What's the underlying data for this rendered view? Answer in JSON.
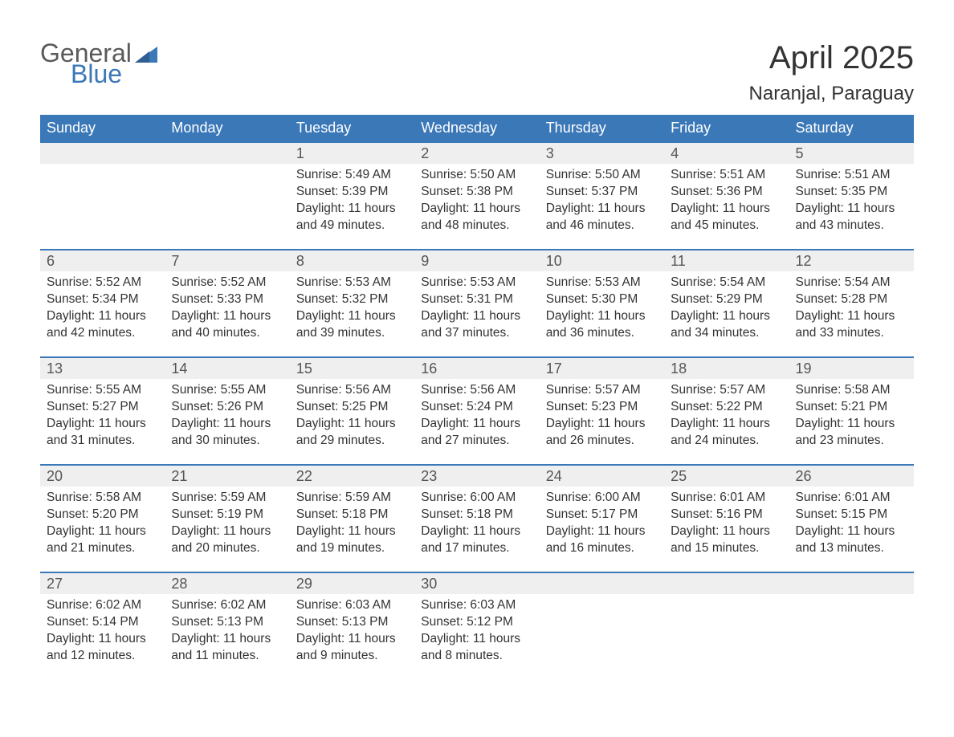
{
  "logo": {
    "text_general": "General",
    "text_blue": "Blue",
    "color_gray": "#5a5a5a",
    "color_blue": "#3b78b8"
  },
  "title": {
    "month": "April 2025",
    "location": "Naranjal, Paraguay"
  },
  "colors": {
    "header_bg": "#3b78b8",
    "header_text": "#ffffff",
    "daynum_bg": "#efefef",
    "week_border": "#3b78b8",
    "body_text": "#333333",
    "page_bg": "#ffffff"
  },
  "layout": {
    "columns": 7,
    "rows": 5,
    "col_width_pct": 14.28
  },
  "calendar": {
    "day_headers": [
      "Sunday",
      "Monday",
      "Tuesday",
      "Wednesday",
      "Thursday",
      "Friday",
      "Saturday"
    ],
    "weeks": [
      [
        null,
        null,
        {
          "n": "1",
          "sunrise": "5:49 AM",
          "sunset": "5:39 PM",
          "daylight": "11 hours and 49 minutes."
        },
        {
          "n": "2",
          "sunrise": "5:50 AM",
          "sunset": "5:38 PM",
          "daylight": "11 hours and 48 minutes."
        },
        {
          "n": "3",
          "sunrise": "5:50 AM",
          "sunset": "5:37 PM",
          "daylight": "11 hours and 46 minutes."
        },
        {
          "n": "4",
          "sunrise": "5:51 AM",
          "sunset": "5:36 PM",
          "daylight": "11 hours and 45 minutes."
        },
        {
          "n": "5",
          "sunrise": "5:51 AM",
          "sunset": "5:35 PM",
          "daylight": "11 hours and 43 minutes."
        }
      ],
      [
        {
          "n": "6",
          "sunrise": "5:52 AM",
          "sunset": "5:34 PM",
          "daylight": "11 hours and 42 minutes."
        },
        {
          "n": "7",
          "sunrise": "5:52 AM",
          "sunset": "5:33 PM",
          "daylight": "11 hours and 40 minutes."
        },
        {
          "n": "8",
          "sunrise": "5:53 AM",
          "sunset": "5:32 PM",
          "daylight": "11 hours and 39 minutes."
        },
        {
          "n": "9",
          "sunrise": "5:53 AM",
          "sunset": "5:31 PM",
          "daylight": "11 hours and 37 minutes."
        },
        {
          "n": "10",
          "sunrise": "5:53 AM",
          "sunset": "5:30 PM",
          "daylight": "11 hours and 36 minutes."
        },
        {
          "n": "11",
          "sunrise": "5:54 AM",
          "sunset": "5:29 PM",
          "daylight": "11 hours and 34 minutes."
        },
        {
          "n": "12",
          "sunrise": "5:54 AM",
          "sunset": "5:28 PM",
          "daylight": "11 hours and 33 minutes."
        }
      ],
      [
        {
          "n": "13",
          "sunrise": "5:55 AM",
          "sunset": "5:27 PM",
          "daylight": "11 hours and 31 minutes."
        },
        {
          "n": "14",
          "sunrise": "5:55 AM",
          "sunset": "5:26 PM",
          "daylight": "11 hours and 30 minutes."
        },
        {
          "n": "15",
          "sunrise": "5:56 AM",
          "sunset": "5:25 PM",
          "daylight": "11 hours and 29 minutes."
        },
        {
          "n": "16",
          "sunrise": "5:56 AM",
          "sunset": "5:24 PM",
          "daylight": "11 hours and 27 minutes."
        },
        {
          "n": "17",
          "sunrise": "5:57 AM",
          "sunset": "5:23 PM",
          "daylight": "11 hours and 26 minutes."
        },
        {
          "n": "18",
          "sunrise": "5:57 AM",
          "sunset": "5:22 PM",
          "daylight": "11 hours and 24 minutes."
        },
        {
          "n": "19",
          "sunrise": "5:58 AM",
          "sunset": "5:21 PM",
          "daylight": "11 hours and 23 minutes."
        }
      ],
      [
        {
          "n": "20",
          "sunrise": "5:58 AM",
          "sunset": "5:20 PM",
          "daylight": "11 hours and 21 minutes."
        },
        {
          "n": "21",
          "sunrise": "5:59 AM",
          "sunset": "5:19 PM",
          "daylight": "11 hours and 20 minutes."
        },
        {
          "n": "22",
          "sunrise": "5:59 AM",
          "sunset": "5:18 PM",
          "daylight": "11 hours and 19 minutes."
        },
        {
          "n": "23",
          "sunrise": "6:00 AM",
          "sunset": "5:18 PM",
          "daylight": "11 hours and 17 minutes."
        },
        {
          "n": "24",
          "sunrise": "6:00 AM",
          "sunset": "5:17 PM",
          "daylight": "11 hours and 16 minutes."
        },
        {
          "n": "25",
          "sunrise": "6:01 AM",
          "sunset": "5:16 PM",
          "daylight": "11 hours and 15 minutes."
        },
        {
          "n": "26",
          "sunrise": "6:01 AM",
          "sunset": "5:15 PM",
          "daylight": "11 hours and 13 minutes."
        }
      ],
      [
        {
          "n": "27",
          "sunrise": "6:02 AM",
          "sunset": "5:14 PM",
          "daylight": "11 hours and 12 minutes."
        },
        {
          "n": "28",
          "sunrise": "6:02 AM",
          "sunset": "5:13 PM",
          "daylight": "11 hours and 11 minutes."
        },
        {
          "n": "29",
          "sunrise": "6:03 AM",
          "sunset": "5:13 PM",
          "daylight": "11 hours and 9 minutes."
        },
        {
          "n": "30",
          "sunrise": "6:03 AM",
          "sunset": "5:12 PM",
          "daylight": "11 hours and 8 minutes."
        },
        null,
        null,
        null
      ]
    ],
    "labels": {
      "sunrise": "Sunrise: ",
      "sunset": "Sunset: ",
      "daylight": "Daylight: "
    }
  }
}
